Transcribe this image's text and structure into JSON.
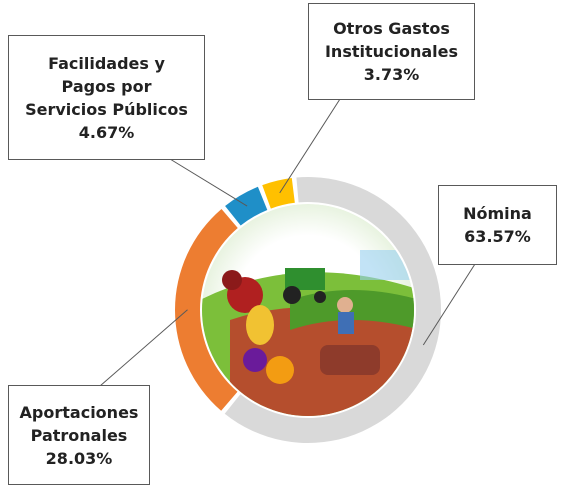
{
  "chart_data": {
    "type": "donut",
    "categories": [
      "Nómina",
      "Aportaciones Patronales",
      "Facilidades y Pagos por Servicios Públicos",
      "Otros Gastos Institucionales"
    ],
    "values": [
      63.57,
      28.03,
      4.67,
      3.73
    ],
    "value_labels": [
      "63.57%",
      "28.03%",
      "4.67%",
      "3.73%"
    ],
    "colors": [
      "#d9d9d9",
      "#ed7d31",
      "#1f8fc8",
      "#ffc000"
    ]
  }
}
